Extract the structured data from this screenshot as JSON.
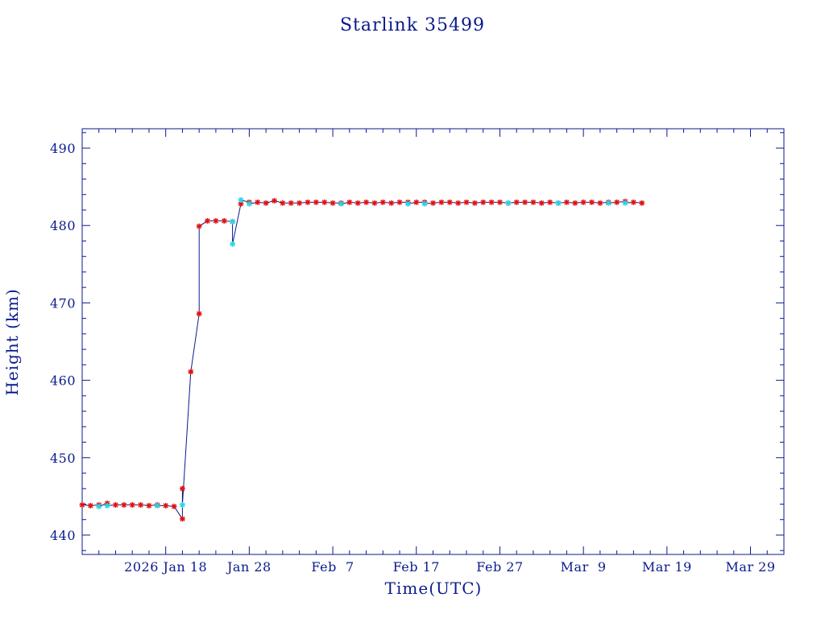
{
  "chart_data": {
    "type": "scatter",
    "title": "Starlink 35499",
    "xlabel": "Time(UTC)",
    "ylabel": "Height (km)",
    "xlim": [
      "2026-01-08",
      "2026-04-02"
    ],
    "ylim": [
      437.5,
      492.5
    ],
    "grid": false,
    "legend": "none",
    "colors": {
      "axis": "#0a1a8c",
      "line": "#0a1a8c",
      "red_points": "#e01010",
      "cyan_points": "#22d8e8"
    },
    "x_ticks": [
      {
        "value": "2026-01-18",
        "label": "2026 Jan 18"
      },
      {
        "value": "2026-01-28",
        "label": "Jan 28"
      },
      {
        "value": "2026-02-07",
        "label": "Feb  7"
      },
      {
        "value": "2026-02-17",
        "label": "Feb 17"
      },
      {
        "value": "2026-02-27",
        "label": "Feb 27"
      },
      {
        "value": "2026-03-09",
        "label": "Mar  9"
      },
      {
        "value": "2026-03-19",
        "label": "Mar 19"
      },
      {
        "value": "2026-03-29",
        "label": "Mar 29"
      }
    ],
    "y_ticks": [
      440,
      450,
      460,
      470,
      480,
      490
    ],
    "series": [
      {
        "marker": "red-star",
        "points": [
          [
            "2026-01-08",
            443.9
          ],
          [
            "2026-01-09",
            443.8
          ],
          [
            "2026-01-10",
            443.9
          ],
          [
            "2026-01-11",
            444.1
          ],
          [
            "2026-01-12",
            443.9
          ],
          [
            "2026-01-13",
            443.9
          ],
          [
            "2026-01-14",
            443.9
          ],
          [
            "2026-01-15",
            443.9
          ],
          [
            "2026-01-16",
            443.8
          ],
          [
            "2026-01-17",
            443.9
          ],
          [
            "2026-01-18",
            443.8
          ],
          [
            "2026-01-19",
            443.7
          ],
          [
            "2026-01-20",
            442.1
          ],
          [
            "2026-01-20",
            446.0
          ],
          [
            "2026-01-21",
            461.1
          ],
          [
            "2026-01-22",
            468.6
          ],
          [
            "2026-01-22",
            479.9
          ],
          [
            "2026-01-23",
            480.6
          ],
          [
            "2026-01-24",
            480.6
          ],
          [
            "2026-01-25",
            480.6
          ],
          [
            "2026-01-26",
            480.5
          ],
          [
            "2026-01-27",
            482.8
          ],
          [
            "2026-01-28",
            483.0
          ],
          [
            "2026-01-29",
            483.0
          ],
          [
            "2026-01-30",
            482.9
          ],
          [
            "2026-01-31",
            483.2
          ],
          [
            "2026-02-01",
            482.9
          ],
          [
            "2026-02-02",
            482.9
          ],
          [
            "2026-02-03",
            482.9
          ],
          [
            "2026-02-04",
            483.0
          ],
          [
            "2026-02-05",
            483.0
          ],
          [
            "2026-02-06",
            483.0
          ],
          [
            "2026-02-07",
            482.9
          ],
          [
            "2026-02-08",
            482.9
          ],
          [
            "2026-02-09",
            483.0
          ],
          [
            "2026-02-10",
            482.9
          ],
          [
            "2026-02-11",
            483.0
          ],
          [
            "2026-02-12",
            482.9
          ],
          [
            "2026-02-13",
            483.0
          ],
          [
            "2026-02-14",
            482.9
          ],
          [
            "2026-02-15",
            483.0
          ],
          [
            "2026-02-16",
            483.0
          ],
          [
            "2026-02-17",
            483.0
          ],
          [
            "2026-02-18",
            483.0
          ],
          [
            "2026-02-19",
            482.9
          ],
          [
            "2026-02-20",
            483.0
          ],
          [
            "2026-02-21",
            483.0
          ],
          [
            "2026-02-22",
            482.9
          ],
          [
            "2026-02-23",
            483.0
          ],
          [
            "2026-02-24",
            482.9
          ],
          [
            "2026-02-25",
            483.0
          ],
          [
            "2026-02-26",
            483.0
          ],
          [
            "2026-02-27",
            483.0
          ],
          [
            "2026-02-28",
            482.9
          ],
          [
            "2026-03-01",
            483.0
          ],
          [
            "2026-03-02",
            483.0
          ],
          [
            "2026-03-03",
            483.0
          ],
          [
            "2026-03-04",
            482.9
          ],
          [
            "2026-03-05",
            483.0
          ],
          [
            "2026-03-06",
            482.9
          ],
          [
            "2026-03-07",
            483.0
          ],
          [
            "2026-03-08",
            482.9
          ],
          [
            "2026-03-09",
            483.0
          ],
          [
            "2026-03-10",
            483.0
          ],
          [
            "2026-03-11",
            482.9
          ],
          [
            "2026-03-12",
            483.0
          ],
          [
            "2026-03-13",
            483.0
          ],
          [
            "2026-03-14",
            483.1
          ],
          [
            "2026-03-15",
            483.0
          ],
          [
            "2026-03-16",
            482.9
          ]
        ]
      },
      {
        "marker": "cyan-star",
        "points": [
          [
            "2026-01-10",
            443.7
          ],
          [
            "2026-01-11",
            443.8
          ],
          [
            "2026-01-17",
            443.8
          ],
          [
            "2026-01-20",
            443.9
          ],
          [
            "2026-01-26",
            480.5
          ],
          [
            "2026-01-26",
            477.6
          ],
          [
            "2026-01-27",
            483.3
          ],
          [
            "2026-01-28",
            482.8
          ],
          [
            "2026-02-08",
            482.8
          ],
          [
            "2026-02-16",
            482.8
          ],
          [
            "2026-02-18",
            482.8
          ],
          [
            "2026-02-28",
            482.9
          ],
          [
            "2026-03-06",
            482.9
          ],
          [
            "2026-03-12",
            482.9
          ],
          [
            "2026-03-14",
            482.9
          ]
        ]
      }
    ]
  }
}
